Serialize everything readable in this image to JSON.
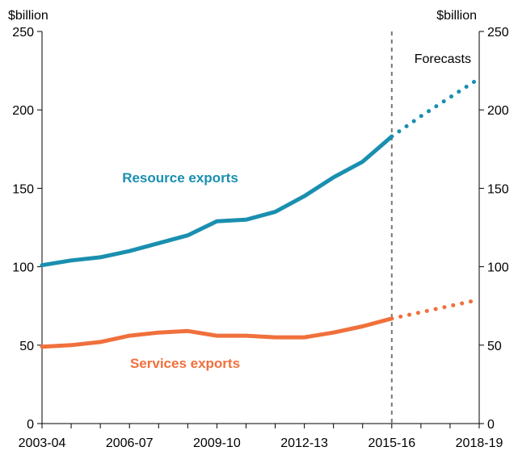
{
  "chart_data": {
    "type": "line",
    "title": "",
    "xlabel": "",
    "ylabel": "$billion",
    "y_unit_left": "$billion",
    "y_unit_right": "$billion",
    "ylim": [
      0,
      250
    ],
    "yticks": [
      0,
      50,
      100,
      150,
      200,
      250
    ],
    "x": [
      "2003-04",
      "2004-05",
      "2005-06",
      "2006-07",
      "2007-08",
      "2008-09",
      "2009-10",
      "2010-11",
      "2011-12",
      "2012-13",
      "2013-14",
      "2014-15",
      "2015-16",
      "2016-17",
      "2017-18",
      "2018-19"
    ],
    "x_tick_labels": [
      "2003-04",
      "2006-07",
      "2009-10",
      "2012-13",
      "2015-16",
      "2018-19"
    ],
    "forecast_start": "2015-16",
    "forecast_label": "Forecasts",
    "grid": false,
    "series": [
      {
        "name": "Resource exports",
        "color": "#1a8fb0",
        "actual": [
          101,
          104,
          106,
          110,
          115,
          120,
          129,
          130,
          135,
          145,
          157,
          167,
          183
        ],
        "forecast": [
          183,
          196,
          208,
          220
        ]
      },
      {
        "name": "Services exports",
        "color": "#f0703c",
        "actual": [
          49,
          50,
          52,
          56,
          58,
          59,
          56,
          56,
          55,
          55,
          58,
          62,
          67
        ],
        "forecast": [
          67,
          71,
          75,
          79
        ]
      }
    ]
  }
}
